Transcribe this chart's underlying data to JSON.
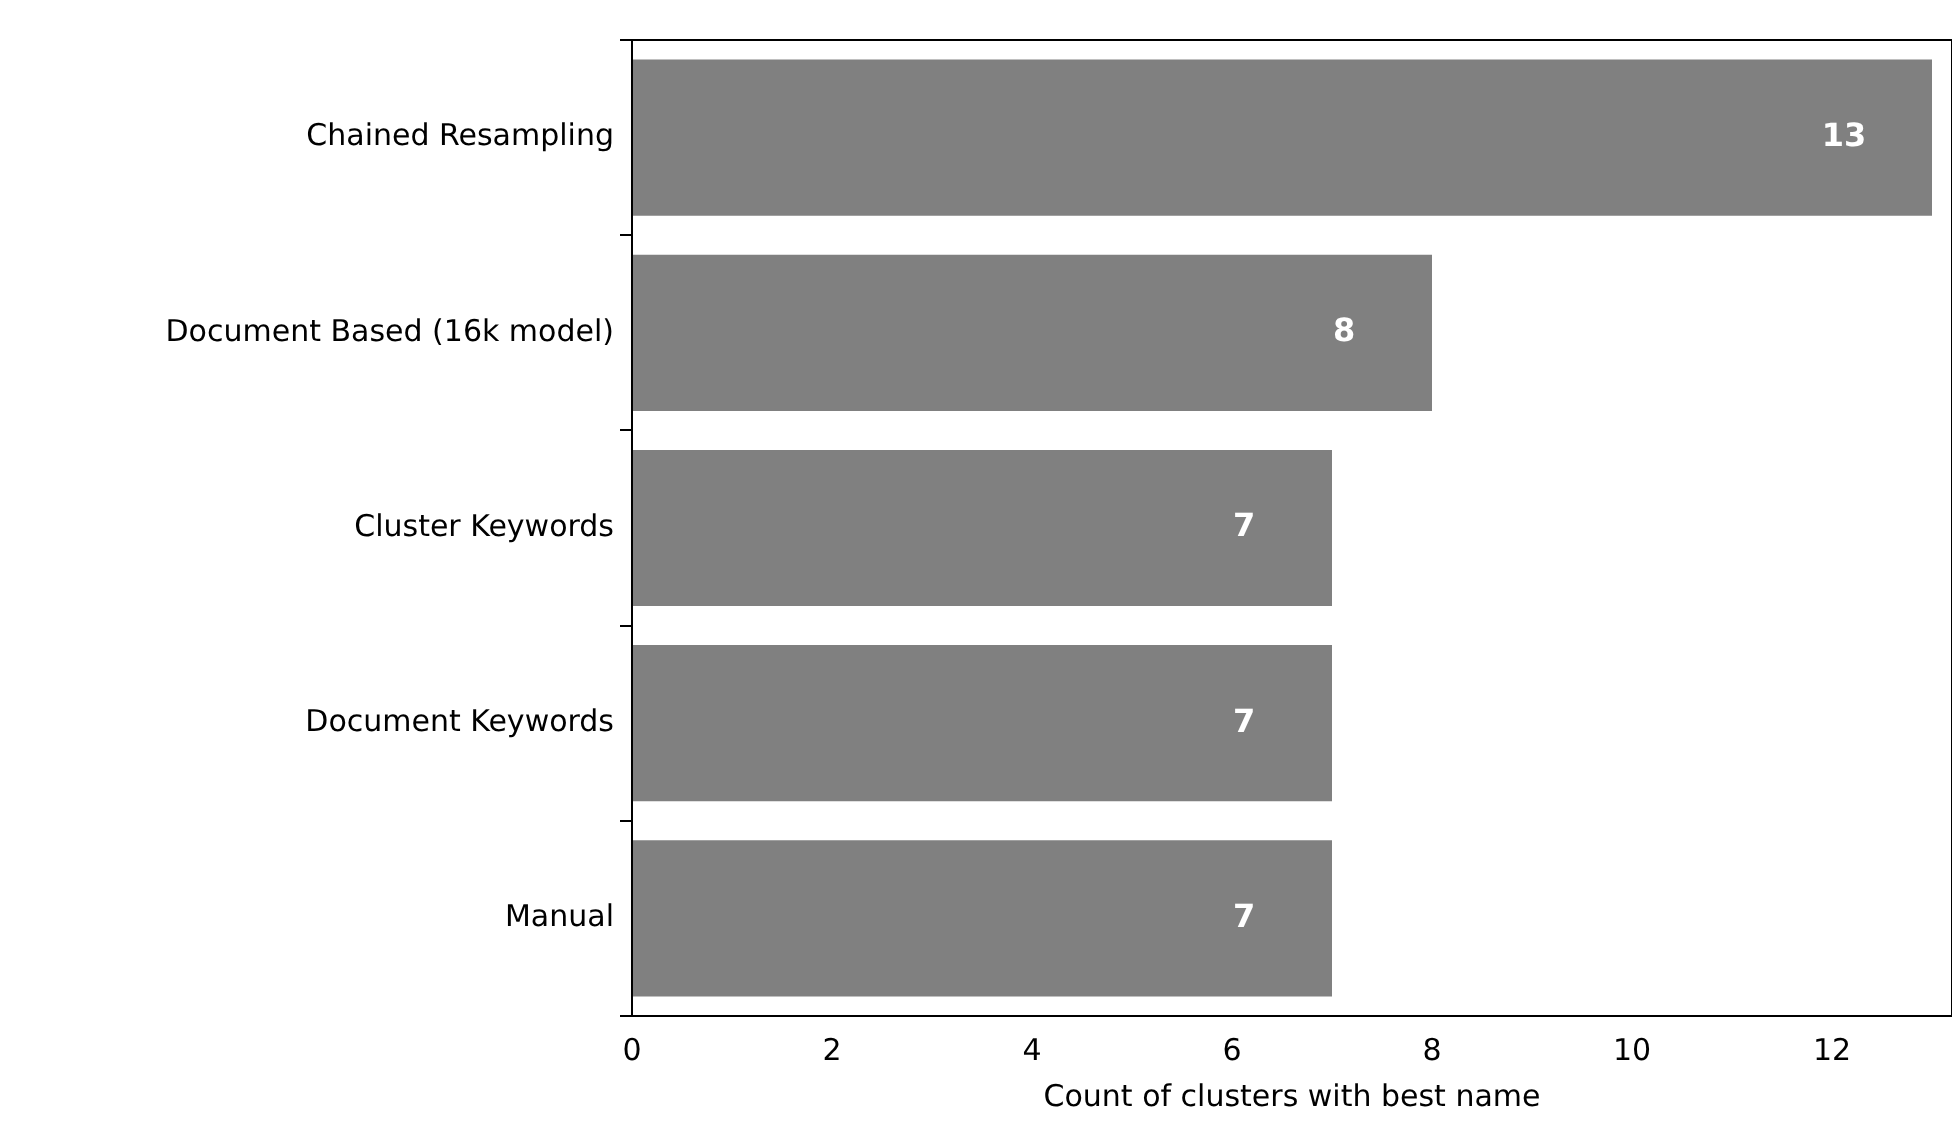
{
  "chart_data": {
    "type": "bar",
    "orientation": "horizontal",
    "xlabel": "Count of clusters with best name",
    "categories": [
      "Chained Resampling",
      "Document Based (16k model)",
      "Cluster Keywords",
      "Document Keywords",
      "Manual"
    ],
    "values": [
      13,
      8,
      7,
      7,
      7
    ],
    "color": "#808080",
    "data_labels": true,
    "xlim": [
      0,
      13.2
    ],
    "xticks": [
      0,
      2,
      4,
      6,
      8,
      10,
      12
    ],
    "grid": false,
    "legend": false
  }
}
